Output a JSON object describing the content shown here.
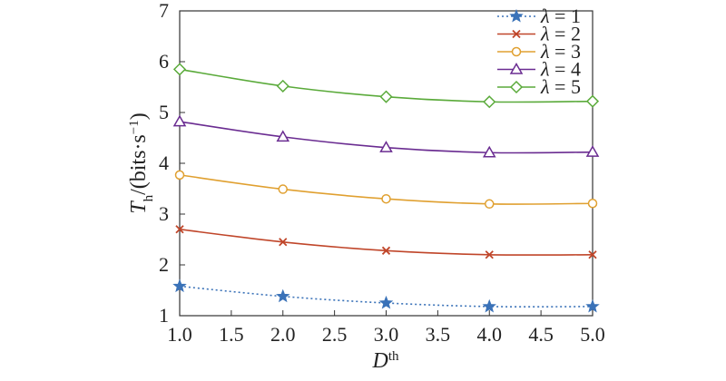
{
  "chart_data": {
    "type": "line",
    "x": [
      1.0,
      2.0,
      3.0,
      4.0,
      5.0
    ],
    "xlim": [
      1.0,
      5.0
    ],
    "ylim": [
      1,
      7
    ],
    "x_ticks": [
      "1.0",
      "1.5",
      "2.0",
      "2.5",
      "3.0",
      "3.5",
      "4.0",
      "4.5",
      "5.0"
    ],
    "y_ticks": [
      "1",
      "2",
      "3",
      "4",
      "5",
      "6",
      "7"
    ],
    "xlabel": {
      "main": "D",
      "sup": "th"
    },
    "ylabel": {
      "main": "T",
      "sub": "h",
      "rest": "/(bits·s",
      "sup": "−1",
      "close": ")"
    },
    "legend_position": "top-right",
    "grid": false,
    "series": [
      {
        "name": "λ = 1",
        "legend_sym": "λ",
        "legend_val": " = 1",
        "color": "#3a72b8",
        "marker": "star",
        "dash": "dotted",
        "values": [
          1.58,
          1.38,
          1.25,
          1.18,
          1.18
        ]
      },
      {
        "name": "λ = 2",
        "legend_sym": "λ",
        "legend_val": " = 2",
        "color": "#c0462a",
        "marker": "x",
        "dash": "solid",
        "values": [
          2.7,
          2.45,
          2.28,
          2.2,
          2.2
        ]
      },
      {
        "name": "λ = 3",
        "legend_sym": "λ",
        "legend_val": " = 3",
        "color": "#e0a030",
        "marker": "circle",
        "dash": "solid",
        "values": [
          3.77,
          3.49,
          3.3,
          3.2,
          3.21
        ]
      },
      {
        "name": "λ = 4",
        "legend_sym": "λ",
        "legend_val": " = 4",
        "color": "#6a2c91",
        "marker": "triangle",
        "dash": "solid",
        "values": [
          4.82,
          4.52,
          4.31,
          4.21,
          4.22
        ]
      },
      {
        "name": "λ = 5",
        "legend_sym": "λ",
        "legend_val": " = 5",
        "color": "#5aaa3a",
        "marker": "diamond",
        "dash": "solid",
        "values": [
          5.85,
          5.52,
          5.31,
          5.21,
          5.22
        ]
      }
    ]
  }
}
